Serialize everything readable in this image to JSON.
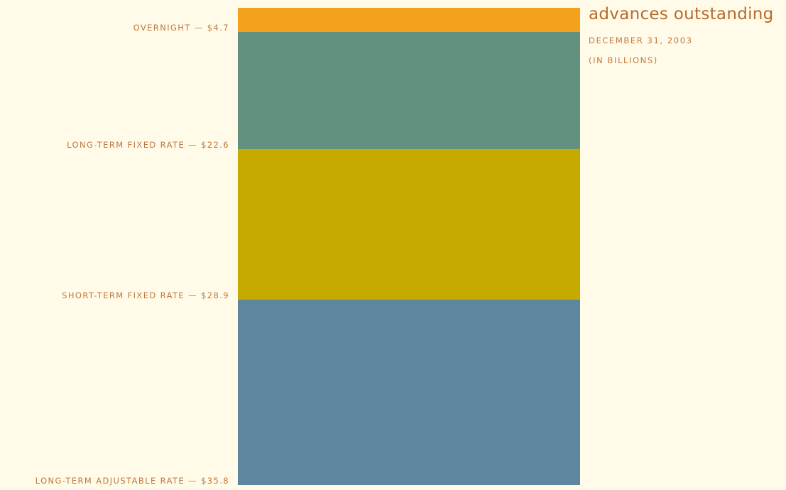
{
  "chart_data": {
    "type": "bar",
    "stacked": true,
    "title": "advances outstanding",
    "subtitle": "DECEMBER 31, 2003",
    "units_note": "(IN BILLIONS)",
    "series": [
      {
        "name": "OVERNIGHT",
        "value": 4.7,
        "label": "OVERNIGHT — $4.7",
        "color": "#f4a11d"
      },
      {
        "name": "LONG-TERM FIXED RATE",
        "value": 22.6,
        "label": "LONG-TERM FIXED RATE — $22.6",
        "color": "#62917f"
      },
      {
        "name": "SHORT-TERM FIXED RATE",
        "value": 28.9,
        "label": "SHORT-TERM FIXED RATE — $28.9",
        "color": "#c6aa00"
      },
      {
        "name": "LONG-TERM ADJUSTABLE RATE",
        "value": 35.8,
        "label": "LONG-TERM ADJUSTABLE RATE — $35.8",
        "color": "#5f869f"
      }
    ],
    "grid": false,
    "legend": "none"
  }
}
